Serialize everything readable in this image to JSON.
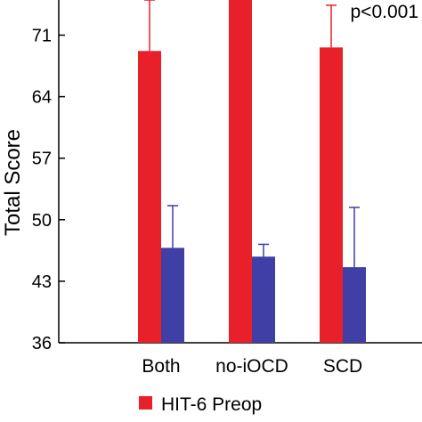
{
  "chart_data": {
    "type": "bar",
    "title": "",
    "xlabel": "",
    "ylabel": "Total Score",
    "ylim": [
      36,
      75
    ],
    "yticks": [
      36,
      43,
      50,
      57,
      64,
      71
    ],
    "categories": [
      "Both",
      "no-iOCD",
      "SCD"
    ],
    "series": [
      {
        "name": "HIT-6 Preop",
        "color": "#e8202a",
        "values": [
          69.2,
          75.6,
          69.6
        ],
        "error": [
          5.8,
          2.0,
          4.8
        ]
      },
      {
        "color": "#3f3fa6",
        "values": [
          46.8,
          45.8,
          44.6
        ],
        "error": [
          4.8,
          1.4,
          6.8
        ]
      }
    ],
    "annotation": "p<0.001",
    "grid": false,
    "legend_position": "bottom"
  }
}
